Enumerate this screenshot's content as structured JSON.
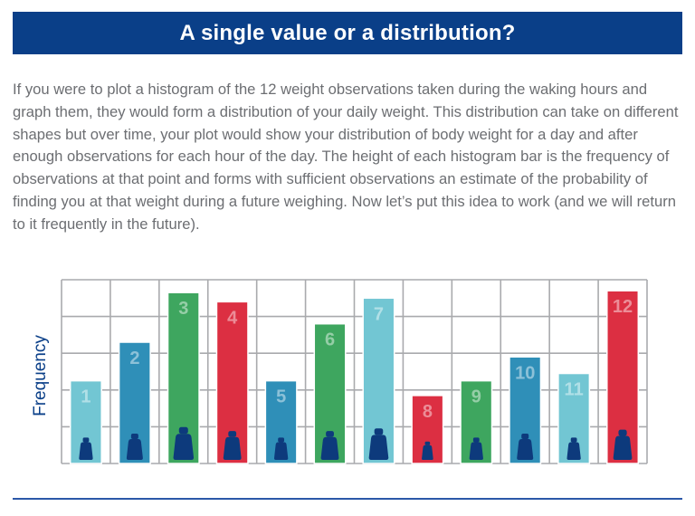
{
  "title": "A single value or a distribution?",
  "paragraph": "If you were to plot a histogram of the 12 weight observations taken during the waking hours and graph them, they would form a distribution of your daily weight. This distribution can take on different shapes but over time, your plot would show your distribution of body weight for a day and after enough observations for each hour of the day. The height of each histogram bar is the frequency of observations at that point and forms with sufficient observations an estimate of the probability of finding you at that weight during a future weighing. Now let’s put this idea to work (and we will return to it frequently in the future).",
  "colors": {
    "banner": "#0a3f88",
    "grid": "#a9aaad",
    "weight_icon": "#0d3a7c",
    "footer_rule": "#2b58a8"
  },
  "chart_data": {
    "type": "bar",
    "title": "",
    "xlabel": "",
    "ylabel": "Frequency",
    "ylim": [
      0,
      5
    ],
    "grid": true,
    "categories": [
      "1",
      "2",
      "3",
      "4",
      "5",
      "6",
      "7",
      "8",
      "9",
      "10",
      "11",
      "12"
    ],
    "values": [
      2.25,
      3.3,
      4.65,
      4.4,
      2.25,
      3.8,
      4.5,
      1.85,
      2.25,
      2.9,
      2.45,
      4.7
    ],
    "bar_colors": [
      "#72c6d3",
      "#2f8fb8",
      "#3ea65f",
      "#dc2f42",
      "#2f8fb8",
      "#3ea65f",
      "#72c6d3",
      "#dc2f42",
      "#3ea65f",
      "#2f8fb8",
      "#72c6d3",
      "#dc2f42"
    ],
    "weight_icons": [
      "weight-icon",
      "weight-icon",
      "weight-icon",
      "weight-icon",
      "weight-icon",
      "weight-icon",
      "weight-icon",
      "weight-icon",
      "weight-icon",
      "weight-icon",
      "weight-icon",
      "weight-icon"
    ],
    "icon_scale": [
      0.85,
      1.0,
      1.25,
      1.1,
      0.85,
      1.1,
      1.2,
      0.7,
      0.85,
      1.0,
      0.85,
      1.15
    ]
  }
}
